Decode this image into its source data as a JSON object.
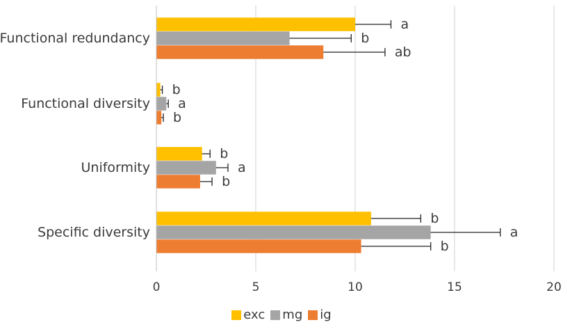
{
  "chart_data": {
    "type": "bar",
    "orientation": "horizontal",
    "categories": [
      "Functional redundancy",
      "Functional diversity",
      "Uniformity",
      "Specific diversity"
    ],
    "series": [
      {
        "name": "exc",
        "color": "#FFC000",
        "values": [
          10.0,
          0.2,
          2.3,
          10.8
        ],
        "errors": [
          1.8,
          0.1,
          0.4,
          2.5
        ],
        "letters": [
          "a",
          "b",
          "b",
          "b"
        ]
      },
      {
        "name": "mg",
        "color": "#A5A5A5",
        "values": [
          6.7,
          0.5,
          3.0,
          13.8
        ],
        "errors": [
          3.1,
          0.1,
          0.6,
          3.5
        ],
        "letters": [
          "b",
          "a",
          "a",
          "a"
        ]
      },
      {
        "name": "ig",
        "color": "#ED7D31",
        "values": [
          8.4,
          0.25,
          2.2,
          10.3
        ],
        "errors": [
          3.1,
          0.1,
          0.6,
          3.5
        ],
        "letters": [
          "ab",
          "b",
          "b",
          "b"
        ]
      }
    ],
    "xlim": [
      0,
      20
    ],
    "xticks": [
      0,
      5,
      10,
      15,
      20
    ],
    "grid": true,
    "legend_position": "bottom"
  }
}
